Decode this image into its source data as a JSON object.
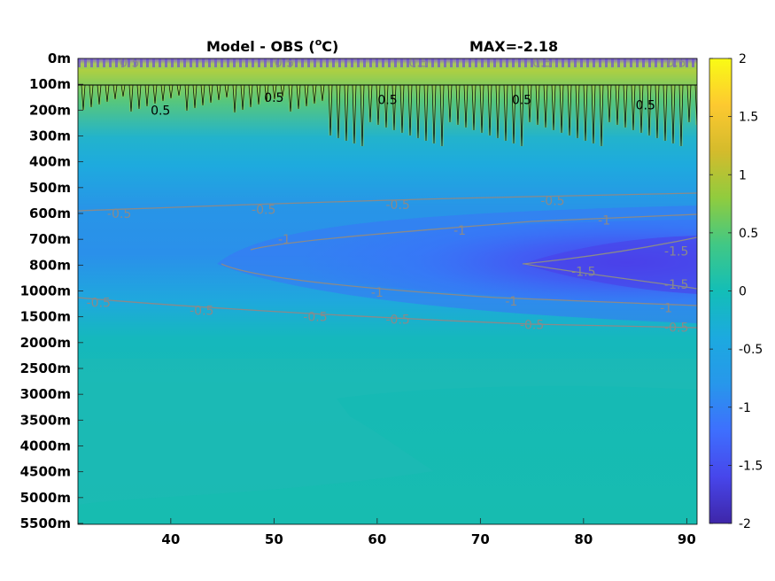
{
  "chart_data": {
    "type": "heatmap",
    "title_left": "Model - OBS (",
    "title_unit": "C)",
    "title_degree": "o",
    "title_right": "MAX=-2.18",
    "x_ticks": [
      "40",
      "50",
      "60",
      "70",
      "80",
      "90"
    ],
    "x_tick_values": [
      40,
      50,
      60,
      70,
      80,
      90
    ],
    "xlim": [
      31,
      91
    ],
    "y_ticks": [
      "0m",
      "100m",
      "200m",
      "300m",
      "400m",
      "500m",
      "600m",
      "700m",
      "800m",
      "1000m",
      "1500m",
      "2000m",
      "2500m",
      "3000m",
      "3500m",
      "4000m",
      "4500m",
      "5000m",
      "5500m"
    ],
    "colorbar": {
      "ticks": [
        "2",
        "1.5",
        "1",
        "0.5",
        "0",
        "-0.5",
        "-1",
        "-1.5",
        "-2"
      ],
      "tick_values": [
        2,
        1.5,
        1,
        0.5,
        0,
        -0.5,
        -1,
        -1.5,
        -2
      ],
      "range": [
        -2,
        2
      ],
      "colormap": "parula",
      "colors": [
        "#3e26a8",
        "#4746eb",
        "#3e6ffe",
        "#2797eb",
        "#1caadf",
        "#13beb7",
        "#41c885",
        "#90cc3e",
        "#d4bb2c",
        "#fdc930",
        "#f9fb15"
      ]
    },
    "contour_levels": [
      -1.5,
      -1,
      -0.5,
      0.5
    ],
    "contour_labels": [
      {
        "text": "0.5",
        "x": 36,
        "y_level": 0.15,
        "color": "gray"
      },
      {
        "text": "0.5",
        "x": 51,
        "y_level": 0.15,
        "color": "gray"
      },
      {
        "text": "0.5",
        "x": 64,
        "y_level": 0.15,
        "color": "gray"
      },
      {
        "text": "0.5",
        "x": 76,
        "y_level": 0.15,
        "color": "gray"
      },
      {
        "text": "0.5",
        "x": 89,
        "y_level": 0.15,
        "color": "gray"
      },
      {
        "text": "0.5",
        "x": 39,
        "y_level": 2.0,
        "color": "black"
      },
      {
        "text": "0.5",
        "x": 50,
        "y_level": 1.5,
        "color": "black"
      },
      {
        "text": "0.5",
        "x": 61,
        "y_level": 1.6,
        "color": "black"
      },
      {
        "text": "0.5",
        "x": 74,
        "y_level": 1.6,
        "color": "black"
      },
      {
        "text": "0.5",
        "x": 86,
        "y_level": 1.8,
        "color": "black"
      },
      {
        "text": "-0.5",
        "x": 35,
        "y_level": 6.0,
        "color": "gray"
      },
      {
        "text": "-0.5",
        "x": 49,
        "y_level": 5.85,
        "color": "gray"
      },
      {
        "text": "-0.5",
        "x": 62,
        "y_level": 5.65,
        "color": "gray"
      },
      {
        "text": "-0.5",
        "x": 77,
        "y_level": 5.5,
        "color": "gray"
      },
      {
        "text": "-1",
        "x": 51,
        "y_level": 7.0,
        "color": "gray"
      },
      {
        "text": "-1",
        "x": 68,
        "y_level": 6.65,
        "color": "gray"
      },
      {
        "text": "-1",
        "x": 82,
        "y_level": 6.25,
        "color": "gray"
      },
      {
        "text": "-1",
        "x": 60,
        "y_level": 9.05,
        "color": "gray"
      },
      {
        "text": "-1",
        "x": 73,
        "y_level": 9.4,
        "color": "gray"
      },
      {
        "text": "-1",
        "x": 88,
        "y_level": 9.65,
        "color": "gray"
      },
      {
        "text": "-1.5",
        "x": 89,
        "y_level": 7.45,
        "color": "gray"
      },
      {
        "text": "-1.5",
        "x": 80,
        "y_level": 8.25,
        "color": "gray"
      },
      {
        "text": "-1.5",
        "x": 89,
        "y_level": 8.75,
        "color": "gray"
      },
      {
        "text": "-0.5",
        "x": 33,
        "y_level": 9.45,
        "color": "gray"
      },
      {
        "text": "-0.5",
        "x": 43,
        "y_level": 9.75,
        "color": "gray"
      },
      {
        "text": "-0.5",
        "x": 54,
        "y_level": 10.0,
        "color": "gray"
      },
      {
        "text": "-0.5",
        "x": 62,
        "y_level": 10.1,
        "color": "gray"
      },
      {
        "text": "-0.5",
        "x": 75,
        "y_level": 10.3,
        "color": "gray"
      },
      {
        "text": "-0.5",
        "x": 89,
        "y_level": 10.4,
        "color": "gray"
      }
    ]
  }
}
